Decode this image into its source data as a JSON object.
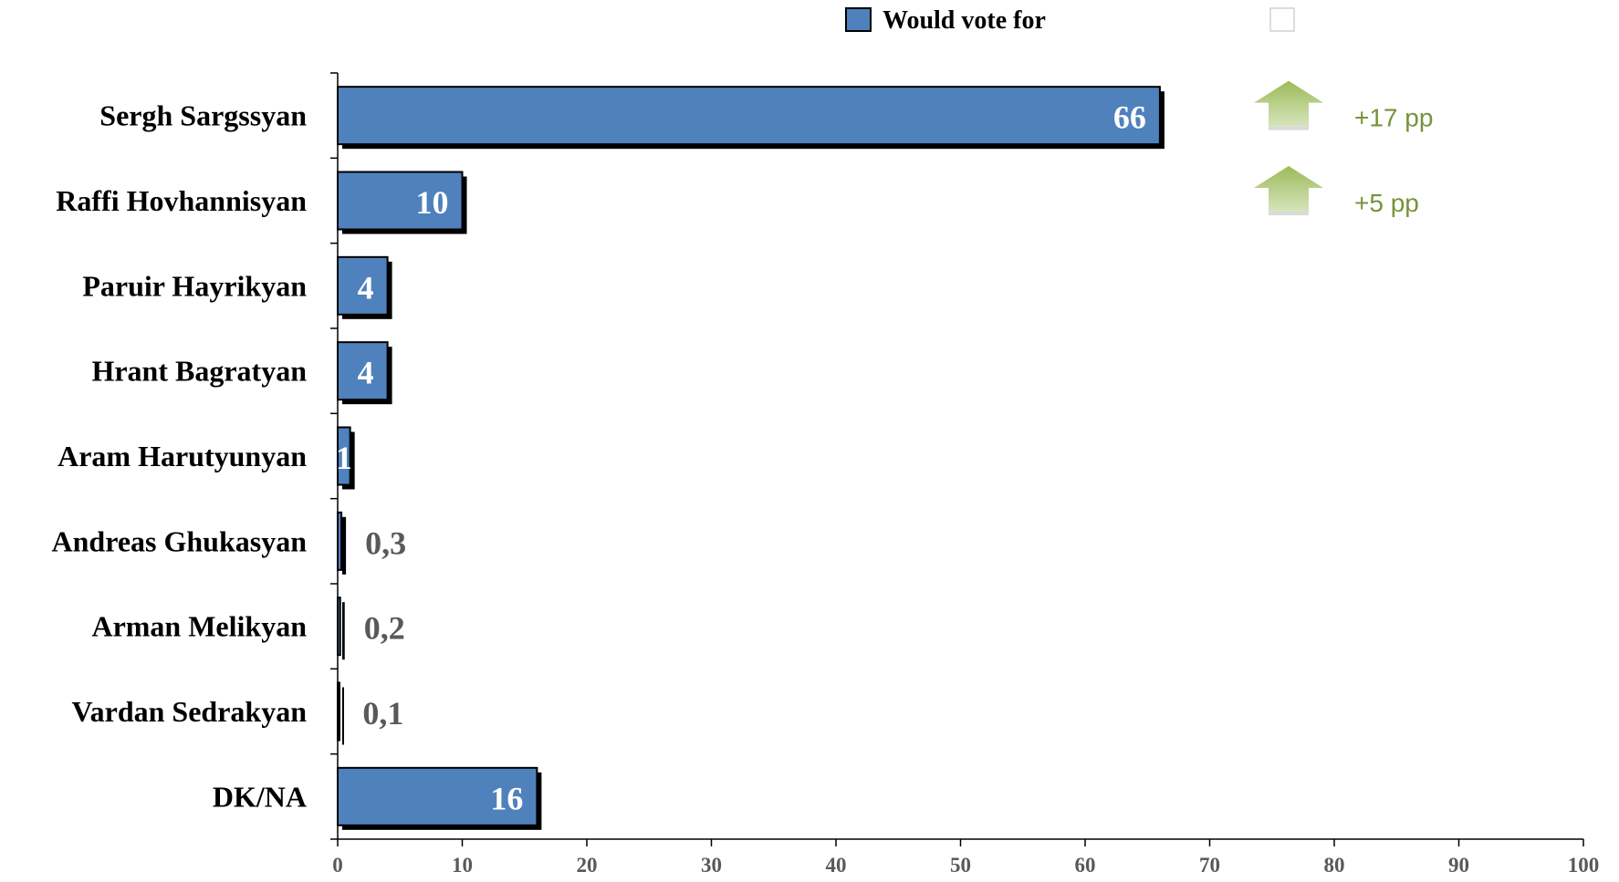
{
  "chart_data": {
    "type": "bar",
    "orientation": "horizontal",
    "categories": [
      "Sergh Sargssyan",
      "Raffi Hovhannisyan",
      "Paruir Hayrikyan",
      "Hrant Bagratyan",
      "Aram Harutyunyan",
      "Andreas Ghukasyan",
      "Arman Melikyan",
      "Vardan Sedrakyan",
      "DK/NA"
    ],
    "series": [
      {
        "name": "Would vote for",
        "values": [
          66,
          10,
          4,
          4,
          1,
          0.3,
          0.2,
          0.1,
          16
        ]
      }
    ],
    "value_labels": [
      "66",
      "10",
      "4",
      "4",
      "1",
      "0,3",
      "0,2",
      "0,1",
      "16"
    ],
    "xlim": [
      0,
      100
    ],
    "xticks": [
      "0",
      "10",
      "20",
      "30",
      "40",
      "50",
      "60",
      "70",
      "80",
      "90",
      "100"
    ],
    "grid": false,
    "legend_position": "top",
    "legend_empty_entry": true,
    "changes": [
      {
        "category": "Sergh Sargssyan",
        "label": "+17 pp",
        "direction": "up"
      },
      {
        "category": "Raffi Hovhannisyan",
        "label": "+5 pp",
        "direction": "up"
      }
    ],
    "colors": {
      "bar": "#4f81bd",
      "shadow": "#000000",
      "arrow": "#9bbb59",
      "change_text": "#77933c"
    }
  }
}
